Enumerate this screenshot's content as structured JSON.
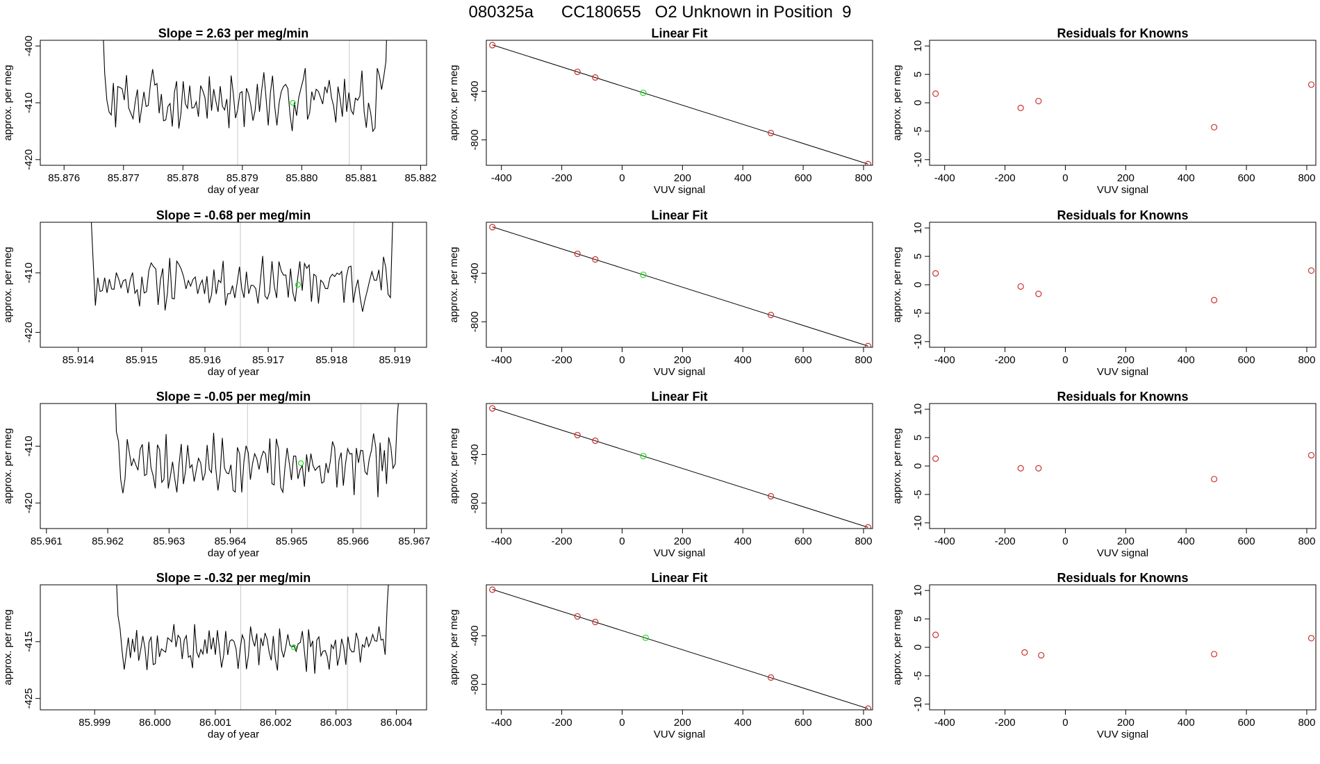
{
  "page": {
    "title": "080325a      CC180655   O2 Unknown in Position  9"
  },
  "colors": {
    "trace": "#000000",
    "known": "#cd2f2f",
    "unknown": "#22dd22",
    "vline": "#c8c8c8",
    "fit": "#000000"
  },
  "chart_data": [
    {
      "type": "line",
      "title": "Slope =  2.63  per meg/min",
      "xlabel": "day of year",
      "ylabel": "approx. per meg",
      "xlim": [
        85.8756,
        85.8821
      ],
      "ylim": [
        -421,
        -399
      ],
      "xticks": [
        {
          "value": 85.876,
          "label": "85.876"
        },
        {
          "value": 85.877,
          "label": "85.877"
        },
        {
          "value": 85.878,
          "label": "85.878"
        },
        {
          "value": 85.879,
          "label": "85.879"
        },
        {
          "value": 85.88,
          "label": "85.880"
        },
        {
          "value": 85.881,
          "label": "85.881"
        },
        {
          "value": 85.882,
          "label": "85.882"
        }
      ],
      "yticks": [
        {
          "value": -400,
          "label": "-400"
        },
        {
          "value": -410,
          "label": "-410"
        },
        {
          "value": -420,
          "label": "-420"
        }
      ],
      "vlines": [
        85.87892,
        85.8808
      ],
      "unknown_point": {
        "x": 85.87985,
        "y": -410
      },
      "trace": {
        "x_start": 85.8765,
        "x_end": 85.8816,
        "points": 140,
        "base": -409.5,
        "amplitude": 4.5,
        "rise_start": 75,
        "rise_end": 52,
        "seed": 3
      }
    },
    {
      "type": "scatter",
      "title": "Linear Fit",
      "xlabel": "VUV signal",
      "ylabel": "approx. per meg",
      "xlim": [
        -450,
        830
      ],
      "ylim": [
        -1010,
        20
      ],
      "xticks": [
        {
          "value": -400,
          "label": "-400"
        },
        {
          "value": -200,
          "label": "-200"
        },
        {
          "value": 0,
          "label": "0"
        },
        {
          "value": 200,
          "label": "200"
        },
        {
          "value": 400,
          "label": "400"
        },
        {
          "value": 600,
          "label": "600"
        },
        {
          "value": 800,
          "label": "800"
        }
      ],
      "yticks": [
        {
          "value": -400,
          "label": "-400"
        },
        {
          "value": -800,
          "label": "-800"
        }
      ],
      "fit_line": {
        "x": [
          -430,
          815
        ],
        "y": [
          -18,
          -1000
        ]
      },
      "known_points": {
        "x": [
          -430,
          -148,
          -89,
          493,
          815
        ],
        "y": [
          -20,
          -240,
          -286,
          -744,
          -1000
        ]
      },
      "unknown_points": {
        "x": [
          70
        ],
        "y": [
          -413
        ]
      }
    },
    {
      "type": "scatter",
      "title": "Residuals for Knowns",
      "xlabel": "VUV signal",
      "ylabel": "approx. per meg",
      "xlim": [
        -450,
        830
      ],
      "ylim": [
        -11,
        11
      ],
      "xticks": [
        {
          "value": -400,
          "label": "-400"
        },
        {
          "value": -200,
          "label": "-200"
        },
        {
          "value": 0,
          "label": "0"
        },
        {
          "value": 200,
          "label": "200"
        },
        {
          "value": 400,
          "label": "400"
        },
        {
          "value": 600,
          "label": "600"
        },
        {
          "value": 800,
          "label": "800"
        }
      ],
      "yticks": [
        {
          "value": 10,
          "label": "10"
        },
        {
          "value": 5,
          "label": "5"
        },
        {
          "value": 0,
          "label": "0"
        },
        {
          "value": -5,
          "label": "-5"
        },
        {
          "value": -10,
          "label": "-10"
        }
      ],
      "known_points": {
        "x": [
          -430,
          -148,
          -89,
          493,
          815
        ],
        "y": [
          1.6,
          -0.9,
          0.3,
          -4.3,
          3.2
        ]
      }
    },
    {
      "type": "line",
      "title": "Slope =  -0.68  per meg/min",
      "xlabel": "day of year",
      "ylabel": "approx. per meg",
      "xlim": [
        85.9134,
        85.9195
      ],
      "ylim": [
        -422.5,
        -401.5
      ],
      "xticks": [
        {
          "value": 85.914,
          "label": "85.914"
        },
        {
          "value": 85.915,
          "label": "85.915"
        },
        {
          "value": 85.916,
          "label": "85.916"
        },
        {
          "value": 85.917,
          "label": "85.917"
        },
        {
          "value": 85.918,
          "label": "85.918"
        },
        {
          "value": 85.919,
          "label": "85.919"
        }
      ],
      "yticks": [
        {
          "value": -410,
          "label": "-410"
        },
        {
          "value": -420,
          "label": "-420"
        }
      ],
      "vlines": [
        85.91656,
        85.91835
      ],
      "unknown_point": {
        "x": 85.91747,
        "y": -412
      },
      "trace": {
        "x_start": 85.91405,
        "x_end": 85.91915,
        "points": 140,
        "base": -411.5,
        "amplitude": 3.6,
        "rise_start": 50,
        "rise_end": 50,
        "seed": 11
      }
    },
    {
      "type": "scatter",
      "title": "Linear Fit",
      "xlabel": "VUV signal",
      "ylabel": "approx. per meg",
      "xlim": [
        -450,
        830
      ],
      "ylim": [
        -1010,
        20
      ],
      "xticks": [
        {
          "value": -400,
          "label": "-400"
        },
        {
          "value": -200,
          "label": "-200"
        },
        {
          "value": 0,
          "label": "0"
        },
        {
          "value": 200,
          "label": "200"
        },
        {
          "value": 400,
          "label": "400"
        },
        {
          "value": 600,
          "label": "600"
        },
        {
          "value": 800,
          "label": "800"
        }
      ],
      "yticks": [
        {
          "value": -400,
          "label": "-400"
        },
        {
          "value": -800,
          "label": "-800"
        }
      ],
      "fit_line": {
        "x": [
          -430,
          815
        ],
        "y": [
          -18,
          -1000
        ]
      },
      "known_points": {
        "x": [
          -430,
          -148,
          -89,
          493,
          815
        ],
        "y": [
          -20,
          -240,
          -286,
          -744,
          -1000
        ]
      },
      "unknown_points": {
        "x": [
          70
        ],
        "y": [
          -413
        ]
      }
    },
    {
      "type": "scatter",
      "title": "Residuals for Knowns",
      "xlabel": "VUV signal",
      "ylabel": "approx. per meg",
      "xlim": [
        -450,
        830
      ],
      "ylim": [
        -11,
        11
      ],
      "xticks": [
        {
          "value": -400,
          "label": "-400"
        },
        {
          "value": -200,
          "label": "-200"
        },
        {
          "value": 0,
          "label": "0"
        },
        {
          "value": 200,
          "label": "200"
        },
        {
          "value": 400,
          "label": "400"
        },
        {
          "value": 600,
          "label": "600"
        },
        {
          "value": 800,
          "label": "800"
        }
      ],
      "yticks": [
        {
          "value": 10,
          "label": "10"
        },
        {
          "value": 5,
          "label": "5"
        },
        {
          "value": 0,
          "label": "0"
        },
        {
          "value": -5,
          "label": "-5"
        },
        {
          "value": -10,
          "label": "-10"
        }
      ],
      "known_points": {
        "x": [
          -430,
          -148,
          -89,
          493,
          815
        ],
        "y": [
          2.0,
          -0.3,
          -1.6,
          -2.7,
          2.5
        ]
      }
    },
    {
      "type": "line",
      "title": "Slope =  -0.05  per meg/min",
      "xlabel": "day of year",
      "ylabel": "approx. per meg",
      "xlim": [
        85.9609,
        85.9672
      ],
      "ylim": [
        -424.5,
        -402.5
      ],
      "xticks": [
        {
          "value": 85.961,
          "label": "85.961"
        },
        {
          "value": 85.962,
          "label": "85.962"
        },
        {
          "value": 85.963,
          "label": "85.963"
        },
        {
          "value": 85.964,
          "label": "85.964"
        },
        {
          "value": 85.965,
          "label": "85.965"
        },
        {
          "value": 85.966,
          "label": "85.966"
        },
        {
          "value": 85.967,
          "label": "85.967"
        }
      ],
      "yticks": [
        {
          "value": -410,
          "label": "-410"
        },
        {
          "value": -420,
          "label": "-420"
        }
      ],
      "vlines": [
        85.96428,
        85.96613
      ],
      "unknown_point": {
        "x": 85.96515,
        "y": -413
      },
      "trace": {
        "x_start": 85.962,
        "x_end": 85.9669,
        "points": 140,
        "base": -413.5,
        "amplitude": 4.2,
        "rise_start": 45,
        "rise_end": 50,
        "seed": 7
      }
    },
    {
      "type": "scatter",
      "title": "Linear Fit",
      "xlabel": "VUV signal",
      "ylabel": "approx. per meg",
      "xlim": [
        -450,
        830
      ],
      "ylim": [
        -1010,
        20
      ],
      "xticks": [
        {
          "value": -400,
          "label": "-400"
        },
        {
          "value": -200,
          "label": "-200"
        },
        {
          "value": 0,
          "label": "0"
        },
        {
          "value": 200,
          "label": "200"
        },
        {
          "value": 400,
          "label": "400"
        },
        {
          "value": 600,
          "label": "600"
        },
        {
          "value": 800,
          "label": "800"
        }
      ],
      "yticks": [
        {
          "value": -400,
          "label": "-400"
        },
        {
          "value": -800,
          "label": "-800"
        }
      ],
      "fit_line": {
        "x": [
          -430,
          815
        ],
        "y": [
          -18,
          -1000
        ]
      },
      "known_points": {
        "x": [
          -430,
          -148,
          -89,
          493,
          815
        ],
        "y": [
          -20,
          -240,
          -286,
          -744,
          -1000
        ]
      },
      "unknown_points": {
        "x": [
          70
        ],
        "y": [
          -413
        ]
      }
    },
    {
      "type": "scatter",
      "title": "Residuals for Knowns",
      "xlabel": "VUV signal",
      "ylabel": "approx. per meg",
      "xlim": [
        -450,
        830
      ],
      "ylim": [
        -11,
        11
      ],
      "xticks": [
        {
          "value": -400,
          "label": "-400"
        },
        {
          "value": -200,
          "label": "-200"
        },
        {
          "value": 0,
          "label": "0"
        },
        {
          "value": 200,
          "label": "200"
        },
        {
          "value": 400,
          "label": "400"
        },
        {
          "value": 600,
          "label": "600"
        },
        {
          "value": 800,
          "label": "800"
        }
      ],
      "yticks": [
        {
          "value": 10,
          "label": "10"
        },
        {
          "value": 5,
          "label": "5"
        },
        {
          "value": 0,
          "label": "0"
        },
        {
          "value": -5,
          "label": "-5"
        },
        {
          "value": -10,
          "label": "-10"
        }
      ],
      "known_points": {
        "x": [
          -430,
          -148,
          -89,
          493,
          815
        ],
        "y": [
          1.3,
          -0.4,
          -0.4,
          -2.3,
          1.9
        ]
      }
    },
    {
      "type": "line",
      "title": "Slope =  -0.32  per meg/min",
      "xlabel": "day of year",
      "ylabel": "approx. per meg",
      "xlim": [
        85.9981,
        86.0045
      ],
      "ylim": [
        -427,
        -405
      ],
      "xticks": [
        {
          "value": 85.999,
          "label": "85.999"
        },
        {
          "value": 86.0,
          "label": "86.000"
        },
        {
          "value": 86.001,
          "label": "86.001"
        },
        {
          "value": 86.002,
          "label": "86.002"
        },
        {
          "value": 86.003,
          "label": "86.003"
        },
        {
          "value": 86.004,
          "label": "86.004"
        }
      ],
      "yticks": [
        {
          "value": -415,
          "label": "-415"
        },
        {
          "value": -425,
          "label": "-425"
        }
      ],
      "vlines": [
        86.00142,
        86.00319
      ],
      "unknown_point": {
        "x": 86.0023,
        "y": -416
      },
      "trace": {
        "x_start": 85.99925,
        "x_end": 86.00402,
        "points": 140,
        "base": -416,
        "amplitude": 3.4,
        "rise_start": 40,
        "rise_end": 50,
        "seed": 19
      }
    },
    {
      "type": "scatter",
      "title": "Linear Fit",
      "xlabel": "VUV signal",
      "ylabel": "approx. per meg",
      "xlim": [
        -450,
        830
      ],
      "ylim": [
        -1010,
        20
      ],
      "xticks": [
        {
          "value": -400,
          "label": "-400"
        },
        {
          "value": -200,
          "label": "-200"
        },
        {
          "value": 0,
          "label": "0"
        },
        {
          "value": 200,
          "label": "200"
        },
        {
          "value": 400,
          "label": "400"
        },
        {
          "value": 600,
          "label": "600"
        },
        {
          "value": 800,
          "label": "800"
        }
      ],
      "yticks": [
        {
          "value": -400,
          "label": "-400"
        },
        {
          "value": -800,
          "label": "-800"
        }
      ],
      "fit_line": {
        "x": [
          -430,
          815
        ],
        "y": [
          -18,
          -1000
        ]
      },
      "known_points": {
        "x": [
          -430,
          -148,
          -89,
          493,
          815
        ],
        "y": [
          -20,
          -240,
          -286,
          -744,
          -1000
        ]
      },
      "unknown_points": {
        "x": [
          78
        ],
        "y": [
          -416
        ]
      }
    },
    {
      "type": "scatter",
      "title": "Residuals for Knowns",
      "xlabel": "VUV signal",
      "ylabel": "approx. per meg",
      "xlim": [
        -450,
        830
      ],
      "ylim": [
        -11,
        11
      ],
      "xticks": [
        {
          "value": -400,
          "label": "-400"
        },
        {
          "value": -200,
          "label": "-200"
        },
        {
          "value": 0,
          "label": "0"
        },
        {
          "value": 200,
          "label": "200"
        },
        {
          "value": 400,
          "label": "400"
        },
        {
          "value": 600,
          "label": "600"
        },
        {
          "value": 800,
          "label": "800"
        }
      ],
      "yticks": [
        {
          "value": 10,
          "label": "10"
        },
        {
          "value": 5,
          "label": "5"
        },
        {
          "value": 0,
          "label": "0"
        },
        {
          "value": -5,
          "label": "-5"
        },
        {
          "value": -10,
          "label": "-10"
        }
      ],
      "known_points": {
        "x": [
          -430,
          -135,
          -80,
          493,
          815
        ],
        "y": [
          2.2,
          -0.9,
          -1.4,
          -1.2,
          1.6
        ]
      }
    }
  ]
}
